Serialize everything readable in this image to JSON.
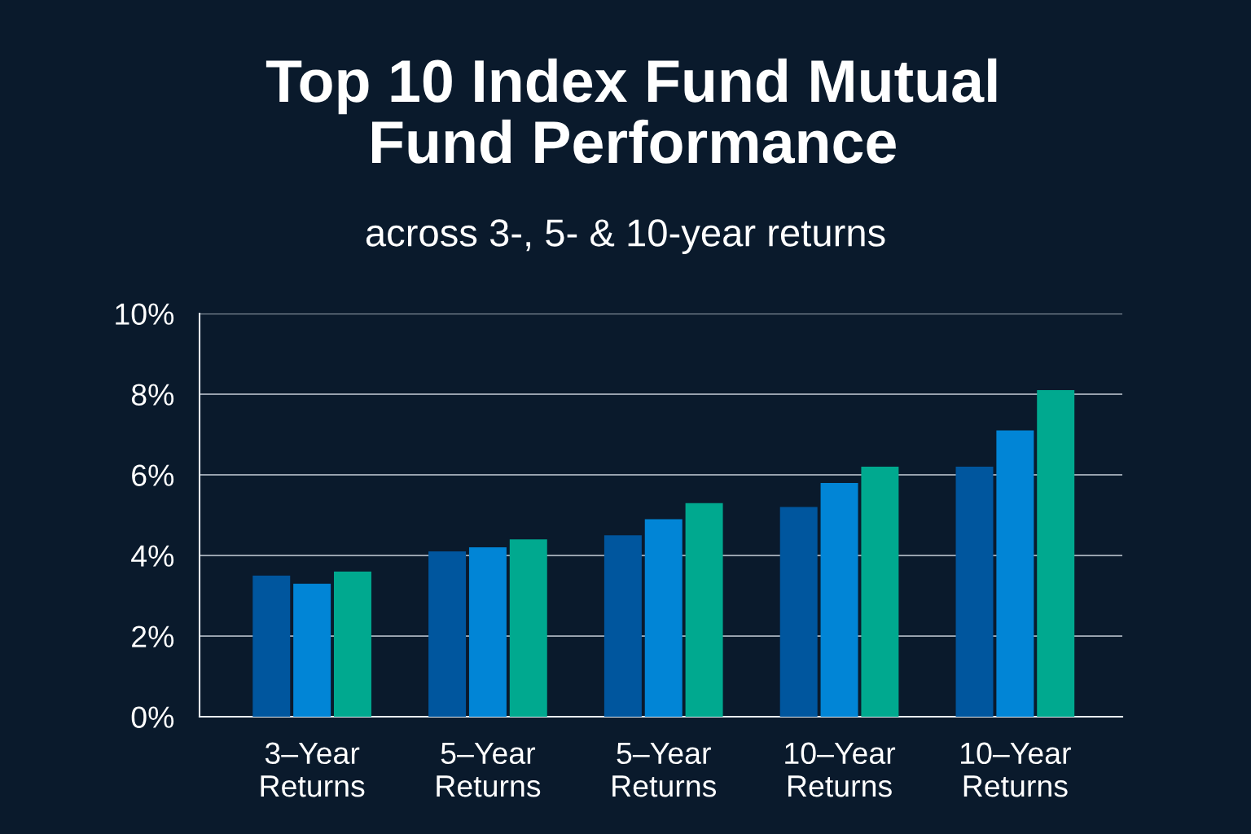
{
  "chart_data": {
    "type": "bar",
    "title": "Top 10 Index Fund Mutual\nFund Performance",
    "subtitle": "across 3-, 5- & 10-year returns",
    "categories": [
      "3–Year\nReturns",
      "5–Year\nReturns",
      "5–Year\nReturns",
      "10–Year\nReturns",
      "10–Year\nReturns"
    ],
    "series": [
      {
        "color": "#00569e",
        "values": [
          3.5,
          4.1,
          4.5,
          5.2,
          6.2
        ]
      },
      {
        "color": "#0185d6",
        "values": [
          3.3,
          4.2,
          4.9,
          5.8,
          7.1
        ]
      },
      {
        "color": "#00a98f",
        "values": [
          3.6,
          4.4,
          5.3,
          6.2,
          8.1
        ]
      }
    ],
    "ylim": [
      0,
      10
    ],
    "yticks": [
      {
        "value": 0,
        "label": "0%"
      },
      {
        "value": 2,
        "label": "2%"
      },
      {
        "value": 4,
        "label": "4%"
      },
      {
        "value": 6,
        "label": "6%"
      },
      {
        "value": 8,
        "label": "8%"
      },
      {
        "value": 10,
        "label": "10%"
      }
    ],
    "grid": "y",
    "legend": false
  }
}
